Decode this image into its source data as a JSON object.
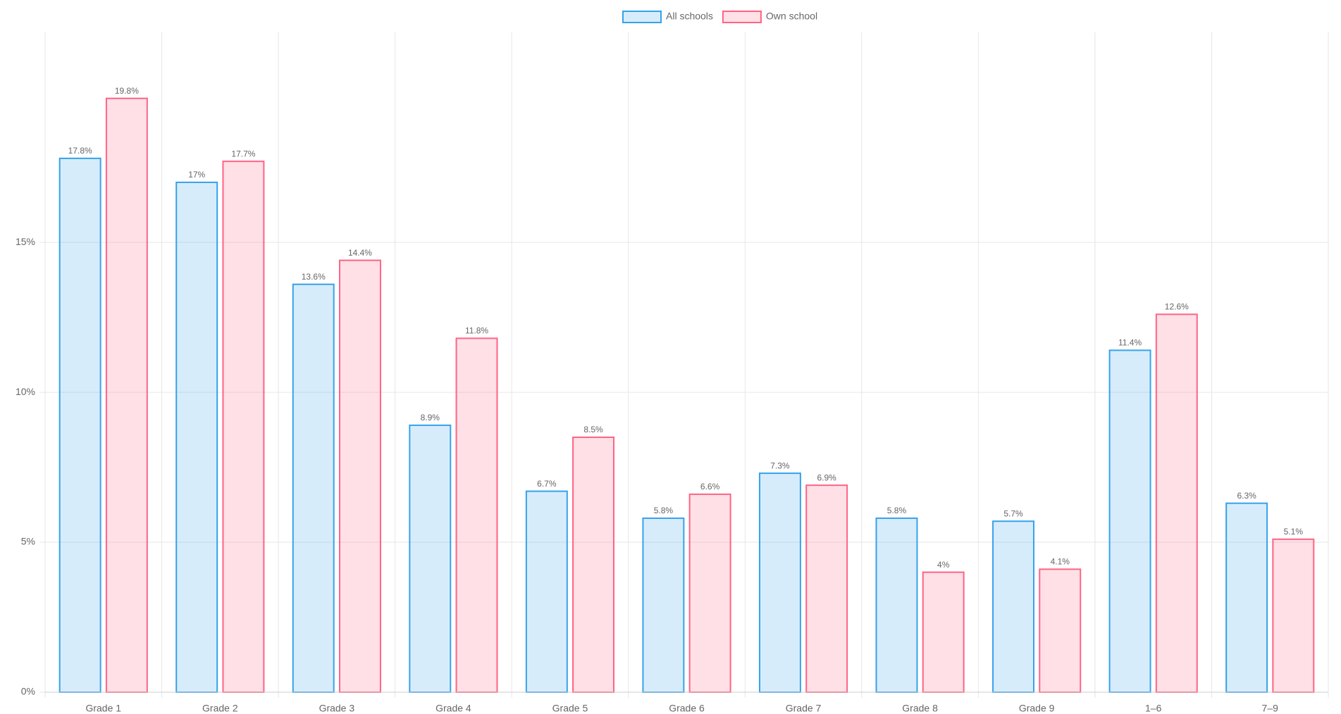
{
  "chart_data": {
    "type": "bar",
    "categories": [
      "Grade 1",
      "Grade 2",
      "Grade 3",
      "Grade 4",
      "Grade 5",
      "Grade 6",
      "Grade 7",
      "Grade 8",
      "Grade 9",
      "1–6",
      "7–9"
    ],
    "series": [
      {
        "name": "All schools",
        "color": "#36a2eb",
        "values": [
          17.8,
          17,
          13.6,
          8.9,
          6.7,
          5.8,
          7.3,
          5.8,
          5.7,
          11.4,
          6.3
        ],
        "value_labels": [
          "17.8%",
          "17%",
          "13.6%",
          "8.9%",
          "6.7%",
          "5.8%",
          "7.3%",
          "5.8%",
          "5.7%",
          "11.4%",
          "6.3%"
        ]
      },
      {
        "name": "Own school",
        "color": "#ff6384",
        "values": [
          19.8,
          17.7,
          14.4,
          11.8,
          8.5,
          6.6,
          6.9,
          4,
          4.1,
          12.6,
          5.1
        ],
        "value_labels": [
          "19.8%",
          "17.7%",
          "14.4%",
          "11.8%",
          "8.5%",
          "6.6%",
          "6.9%",
          "4%",
          "4.1%",
          "12.6%",
          "5.1%"
        ]
      }
    ],
    "ylim": [
      0,
      22
    ],
    "yticks": [
      {
        "value": 0,
        "label": "0%"
      },
      {
        "value": 5,
        "label": "5%"
      },
      {
        "value": 10,
        "label": "10%"
      },
      {
        "value": 15,
        "label": "15%"
      }
    ],
    "grid": true,
    "legend": "top"
  }
}
